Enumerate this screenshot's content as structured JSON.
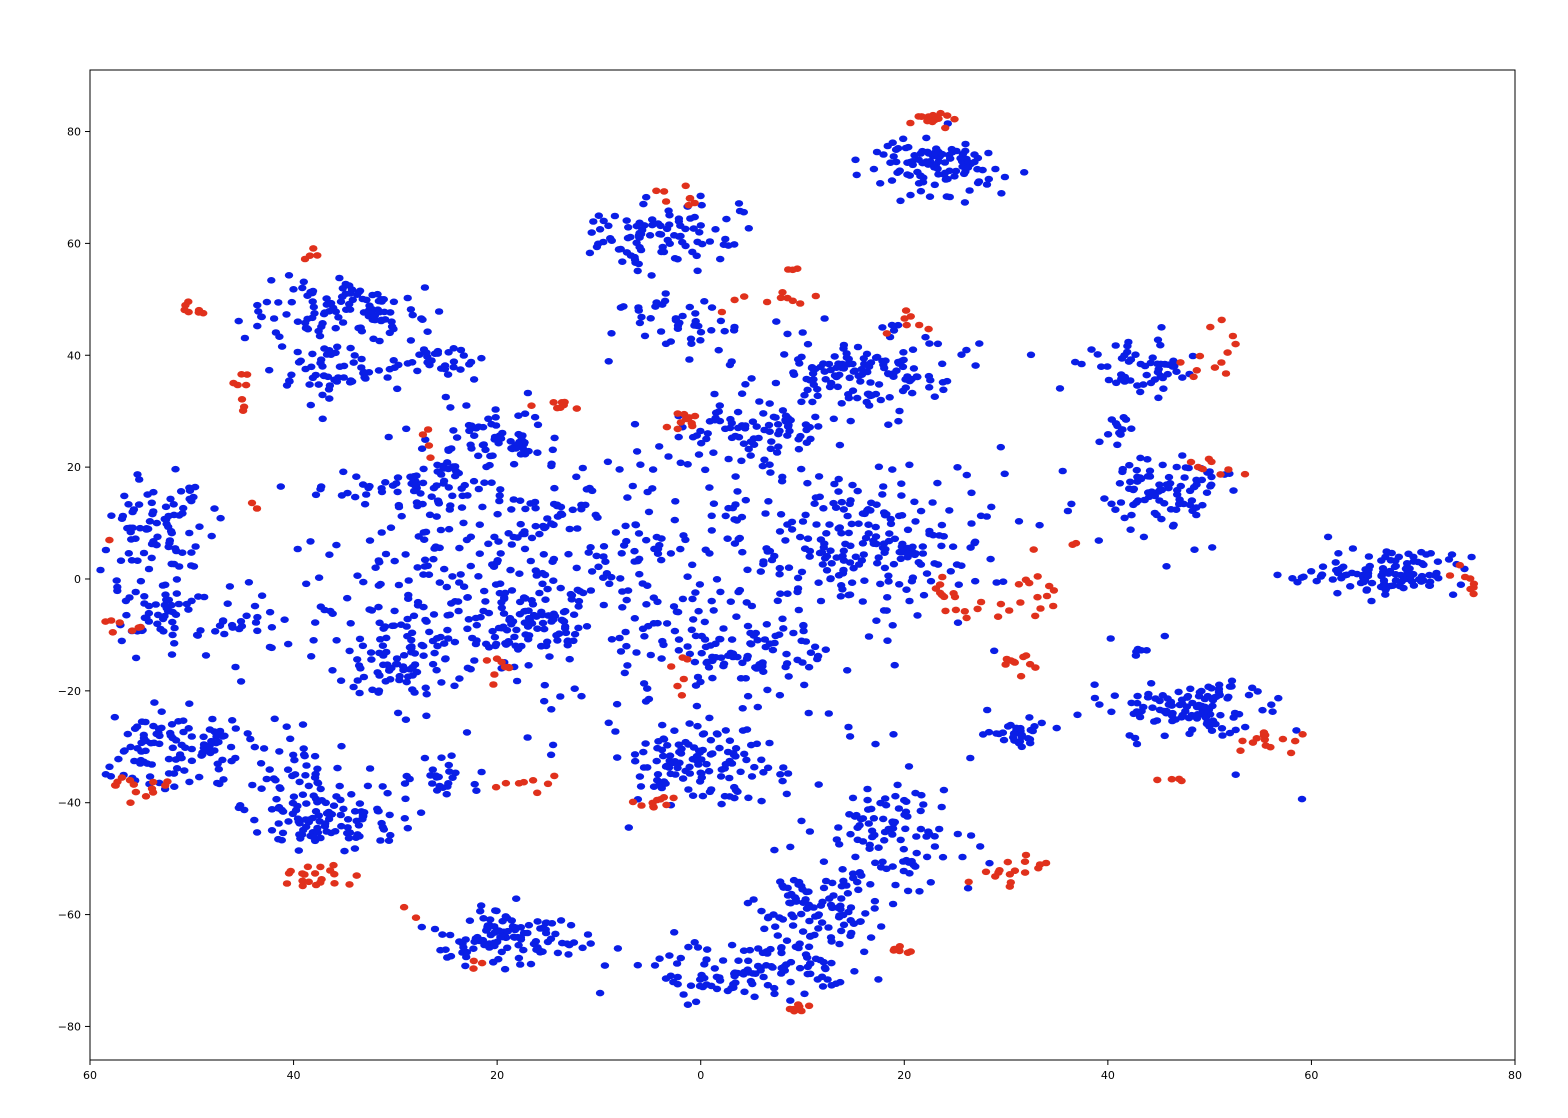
{
  "chart_data": {
    "type": "scatter",
    "title": "",
    "xlabel": "",
    "ylabel": "",
    "xlim": [
      -60,
      80
    ],
    "ylim": [
      -86,
      91
    ],
    "x_ticks": [
      -60,
      -40,
      -20,
      0,
      20,
      40,
      60,
      80
    ],
    "x_tick_labels": [
      "60",
      "40",
      "20",
      "0",
      "20",
      "40",
      "60",
      "80"
    ],
    "y_ticks": [
      -80,
      -60,
      -40,
      -20,
      0,
      20,
      40,
      60,
      80
    ],
    "y_tick_labels": [
      "−80",
      "−60",
      "−40",
      "−20",
      "0",
      "20",
      "40",
      "60",
      "80"
    ],
    "grid": false,
    "legend": "none",
    "colors": {
      "blue": "#0a1ee6",
      "red": "#e0311c",
      "axes": "#000000"
    },
    "series": [
      {
        "color": "#0a1ee6",
        "clusters": [
          {
            "cx": 23,
            "cy": 74,
            "sx": 3,
            "sy": 2.5,
            "n": 110
          },
          {
            "cx": -4,
            "cy": 61,
            "sx": 3.5,
            "sy": 3,
            "n": 95
          },
          {
            "cx": -6,
            "cy": 48,
            "sx": 2,
            "sy": 1,
            "n": 10
          },
          {
            "cx": -1,
            "cy": 45,
            "sx": 2.2,
            "sy": 2,
            "n": 30
          },
          {
            "cx": -36,
            "cy": 48,
            "sx": 4,
            "sy": 3,
            "n": 110
          },
          {
            "cx": -36,
            "cy": 37,
            "sx": 3.5,
            "sy": 2.5,
            "n": 55
          },
          {
            "cx": -26,
            "cy": 39,
            "sx": 2.5,
            "sy": 2,
            "n": 30
          },
          {
            "cx": 15,
            "cy": 37,
            "sx": 5,
            "sy": 3.5,
            "n": 140
          },
          {
            "cx": 44,
            "cy": 38,
            "sx": 2.5,
            "sy": 2.5,
            "n": 55
          },
          {
            "cx": 41,
            "cy": 27,
            "sx": 1,
            "sy": 1.5,
            "n": 12
          },
          {
            "cx": 45,
            "cy": 16,
            "sx": 3.5,
            "sy": 3,
            "n": 90
          },
          {
            "cx": 5,
            "cy": 26,
            "sx": 3,
            "sy": 2.5,
            "n": 70
          },
          {
            "cx": -19,
            "cy": 25,
            "sx": 3,
            "sy": 2.5,
            "n": 55
          },
          {
            "cx": -28,
            "cy": 17,
            "sx": 3,
            "sy": 2.5,
            "n": 55
          },
          {
            "cx": -53,
            "cy": 8,
            "sx": 2.5,
            "sy": 4.5,
            "n": 80
          },
          {
            "cx": -53,
            "cy": -6,
            "sx": 3,
            "sy": 3.5,
            "n": 60
          },
          {
            "cx": -45,
            "cy": -8,
            "sx": 2,
            "sy": 3,
            "n": 20
          },
          {
            "cx": -20,
            "cy": 2,
            "sx": 9,
            "sy": 11,
            "n": 260
          },
          {
            "cx": -17,
            "cy": -8,
            "sx": 3,
            "sy": 3.5,
            "n": 70
          },
          {
            "cx": -30,
            "cy": -15,
            "sx": 3.5,
            "sy": 3.5,
            "n": 80
          },
          {
            "cx": 3,
            "cy": -12,
            "sx": 5,
            "sy": 5,
            "n": 110
          },
          {
            "cx": 17,
            "cy": 5,
            "sx": 5,
            "sy": 5.5,
            "n": 150
          },
          {
            "cx": 5,
            "cy": 12,
            "sx": 10,
            "sy": 6,
            "n": 70
          },
          {
            "cx": 68,
            "cy": 1,
            "sx": 3.5,
            "sy": 2,
            "n": 110
          },
          {
            "cx": 59,
            "cy": 0,
            "sx": 1,
            "sy": 0.4,
            "n": 5
          },
          {
            "cx": 48,
            "cy": -23,
            "sx": 4,
            "sy": 2.5,
            "n": 110
          },
          {
            "cx": 43,
            "cy": -13,
            "sx": 0.4,
            "sy": 0.5,
            "n": 4
          },
          {
            "cx": 31,
            "cy": -28,
            "sx": 2,
            "sy": 1.8,
            "n": 30
          },
          {
            "cx": 0,
            "cy": -33,
            "sx": 4,
            "sy": 3.5,
            "n": 120
          },
          {
            "cx": -52,
            "cy": -30,
            "sx": 4,
            "sy": 3,
            "n": 110
          },
          {
            "cx": -40,
            "cy": -33,
            "sx": 3,
            "sy": 3,
            "n": 35
          },
          {
            "cx": -37,
            "cy": -43,
            "sx": 3.5,
            "sy": 3,
            "n": 110
          },
          {
            "cx": -25,
            "cy": -36,
            "sx": 2,
            "sy": 1.5,
            "n": 25
          },
          {
            "cx": -19,
            "cy": -64,
            "sx": 3.5,
            "sy": 2.5,
            "n": 110
          },
          {
            "cx": 19,
            "cy": -45,
            "sx": 3.5,
            "sy": 5,
            "n": 100
          },
          {
            "cx": 12,
            "cy": -59,
            "sx": 3,
            "sy": 3.5,
            "n": 100
          },
          {
            "cx": 5,
            "cy": -70,
            "sx": 5,
            "sy": 2.5,
            "n": 110
          },
          {
            "cx": 0,
            "cy": 0,
            "sx": 22,
            "sy": 20,
            "n": 180
          }
        ]
      },
      {
        "color": "#e0311c",
        "clusters": [
          {
            "cx": 23,
            "cy": 82,
            "sx": 1.5,
            "sy": 0.8,
            "n": 16
          },
          {
            "cx": -2,
            "cy": 68,
            "sx": 1.2,
            "sy": 1.2,
            "n": 8
          },
          {
            "cx": -38,
            "cy": 58,
            "sx": 0.6,
            "sy": 0.8,
            "n": 4
          },
          {
            "cx": -50,
            "cy": 48,
            "sx": 0.7,
            "sy": 1,
            "n": 7
          },
          {
            "cx": -45,
            "cy": 34,
            "sx": 0.8,
            "sy": 1.8,
            "n": 8
          },
          {
            "cx": -14,
            "cy": 31,
            "sx": 1,
            "sy": 0.6,
            "n": 8
          },
          {
            "cx": -1,
            "cy": 28,
            "sx": 1.2,
            "sy": 1,
            "n": 10
          },
          {
            "cx": 5,
            "cy": 50,
            "sx": 2.5,
            "sy": 1.5,
            "n": 10
          },
          {
            "cx": 9,
            "cy": 55,
            "sx": 0.3,
            "sy": 0.5,
            "n": 3
          },
          {
            "cx": 20,
            "cy": 46,
            "sx": 1.5,
            "sy": 1,
            "n": 7
          },
          {
            "cx": 50,
            "cy": 39,
            "sx": 1.5,
            "sy": 3,
            "n": 12
          },
          {
            "cx": 50,
            "cy": 20,
            "sx": 1.5,
            "sy": 1,
            "n": 8
          },
          {
            "cx": -59,
            "cy": 7,
            "sx": 1,
            "sy": 0.3,
            "n": 4
          },
          {
            "cx": -57,
            "cy": -9,
            "sx": 2.5,
            "sy": 0.8,
            "n": 12
          },
          {
            "cx": -44,
            "cy": 13,
            "sx": 0.3,
            "sy": 0.3,
            "n": 2
          },
          {
            "cx": 24,
            "cy": -2,
            "sx": 1.5,
            "sy": 1.5,
            "n": 8
          },
          {
            "cx": 29,
            "cy": -6,
            "sx": 1.8,
            "sy": 0.8,
            "n": 10
          },
          {
            "cx": 33,
            "cy": -1,
            "sx": 1.5,
            "sy": 3,
            "n": 12
          },
          {
            "cx": 31,
            "cy": -15,
            "sx": 1.5,
            "sy": 1,
            "n": 10
          },
          {
            "cx": -20,
            "cy": -16,
            "sx": 1,
            "sy": 1.5,
            "n": 8
          },
          {
            "cx": -2,
            "cy": -18,
            "sx": 1,
            "sy": 2,
            "n": 6
          },
          {
            "cx": 55,
            "cy": -29,
            "sx": 1.5,
            "sy": 1,
            "n": 14
          },
          {
            "cx": 47,
            "cy": -36,
            "sx": 1,
            "sy": 0.4,
            "n": 4
          },
          {
            "cx": -55,
            "cy": -37,
            "sx": 1.5,
            "sy": 1,
            "n": 14
          },
          {
            "cx": -17,
            "cy": -37,
            "sx": 2,
            "sy": 1,
            "n": 8
          },
          {
            "cx": -4,
            "cy": -40,
            "sx": 1.2,
            "sy": 0.8,
            "n": 10
          },
          {
            "cx": -38,
            "cy": -53,
            "sx": 2.5,
            "sy": 1,
            "n": 20
          },
          {
            "cx": 31,
            "cy": -52,
            "sx": 2,
            "sy": 1.5,
            "n": 16
          },
          {
            "cx": 20,
            "cy": -66,
            "sx": 1,
            "sy": 0.5,
            "n": 6
          },
          {
            "cx": 10,
            "cy": -77,
            "sx": 1,
            "sy": 0.4,
            "n": 8
          },
          {
            "cx": -22,
            "cy": -69,
            "sx": 0.5,
            "sy": 0.6,
            "n": 3
          },
          {
            "cx": -28,
            "cy": -60,
            "sx": 1,
            "sy": 1,
            "n": 2
          },
          {
            "cx": 75,
            "cy": -1,
            "sx": 1,
            "sy": 1.2,
            "n": 8
          },
          {
            "cx": -27,
            "cy": 24,
            "sx": 0.6,
            "sy": 1.5,
            "n": 4
          },
          {
            "cx": 37,
            "cy": 6,
            "sx": 0.3,
            "sy": 0.3,
            "n": 2
          }
        ]
      }
    ]
  }
}
